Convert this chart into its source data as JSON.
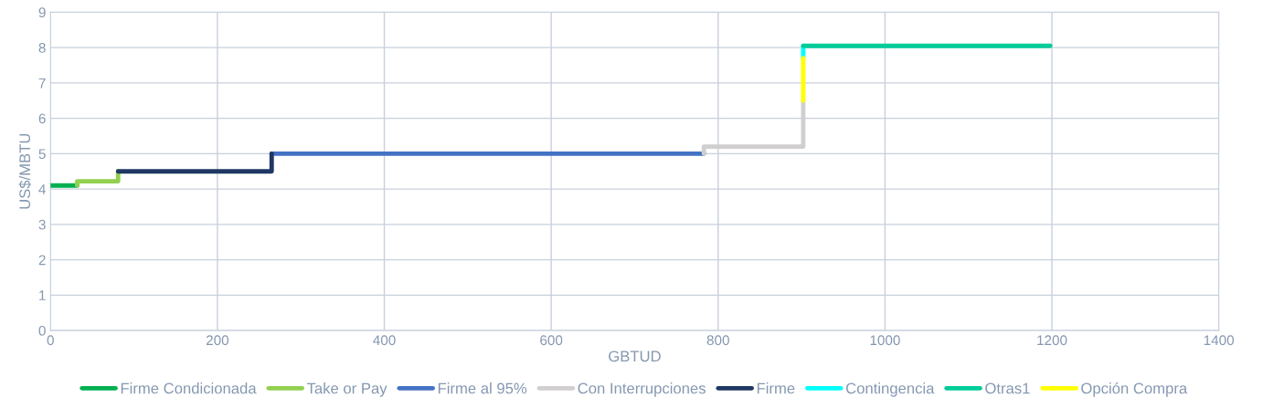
{
  "chart_data": {
    "type": "line",
    "xlabel": "GBTUD",
    "ylabel": "US$/MBTU",
    "xlim": [
      0,
      1400
    ],
    "xticks": [
      0,
      200,
      400,
      600,
      800,
      1000,
      1200,
      1400
    ],
    "ylim": [
      0,
      9
    ],
    "yticks": [
      0,
      1,
      2,
      3,
      4,
      5,
      6,
      7,
      8,
      9
    ],
    "grid": true,
    "legend": "bottom",
    "marker": "none",
    "line_style": "solid",
    "series": [
      {
        "name": "Firme Condicionada",
        "color": "#00b050",
        "x": [
          0,
          32
        ],
        "values": [
          4.1,
          4.1
        ]
      },
      {
        "name": "Take or Pay",
        "color": "#92d050",
        "x": [
          32,
          32,
          81,
          81
        ],
        "values": [
          4.1,
          4.22,
          4.22,
          4.5
        ]
      },
      {
        "name": "Firme al 95%",
        "color": "#4472c4",
        "x": [
          265,
          783
        ],
        "values": [
          5.0,
          5.0
        ]
      },
      {
        "name": "Con Interrupciones",
        "color": "#d0cece",
        "x": [
          783,
          783,
          902,
          902
        ],
        "values": [
          5.0,
          5.2,
          5.2,
          6.5
        ]
      },
      {
        "name": "Firme",
        "color": "#1f3864",
        "x": [
          81,
          265,
          265
        ],
        "values": [
          4.5,
          4.5,
          5.0
        ]
      },
      {
        "name": "Contingencia",
        "color": "#00ffff",
        "x": [
          902,
          902
        ],
        "values": [
          7.7,
          8.05
        ]
      },
      {
        "name": "Otras1",
        "color": "#00cc99",
        "x": [
          902,
          1198
        ],
        "values": [
          8.05,
          8.05
        ]
      },
      {
        "name": "Opción Compra",
        "color": "#ffff00",
        "x": [
          902,
          902
        ],
        "values": [
          6.5,
          7.7
        ]
      }
    ]
  }
}
